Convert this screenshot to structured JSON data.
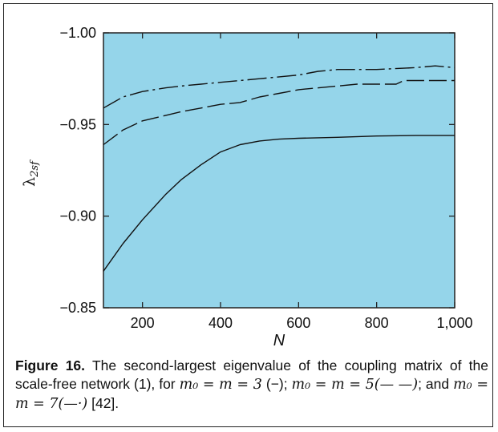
{
  "chart_data": {
    "type": "line",
    "xlabel": "N",
    "ylabel": "λ2sf",
    "xlim": [
      100,
      1000
    ],
    "ylim": [
      -0.85,
      -1.0
    ],
    "y_reversed": true,
    "background": "#95d5ea",
    "xticks": [
      200,
      400,
      600,
      800,
      1000
    ],
    "xtick_labels": [
      "200",
      "400",
      "600",
      "800",
      "1,000"
    ],
    "yticks": [
      -1.0,
      -0.95,
      -0.9,
      -0.85
    ],
    "ytick_labels": [
      "−1.00",
      "−0.95",
      "−0.90",
      "−0.85"
    ],
    "series": [
      {
        "style": "solid",
        "x": [
          100,
          150,
          200,
          260,
          300,
          350,
          400,
          450,
          500,
          550,
          600,
          700,
          800,
          900,
          1000
        ],
        "y": [
          -0.87,
          -0.885,
          -0.898,
          -0.912,
          -0.92,
          -0.928,
          -0.935,
          -0.939,
          -0.941,
          -0.942,
          -0.9425,
          -0.943,
          -0.9437,
          -0.944,
          -0.944
        ]
      },
      {
        "style": "dashed",
        "x": [
          100,
          150,
          200,
          260,
          300,
          350,
          400,
          450,
          500,
          550,
          600,
          700,
          750,
          800,
          850,
          870,
          900,
          1000
        ],
        "y": [
          -0.939,
          -0.947,
          -0.952,
          -0.955,
          -0.957,
          -0.959,
          -0.961,
          -0.962,
          -0.965,
          -0.967,
          -0.969,
          -0.971,
          -0.972,
          -0.972,
          -0.972,
          -0.974,
          -0.974,
          -0.974
        ]
      },
      {
        "style": "dashdot",
        "x": [
          100,
          150,
          200,
          260,
          300,
          350,
          400,
          450,
          500,
          550,
          600,
          650,
          700,
          800,
          900,
          950,
          1000
        ],
        "y": [
          -0.959,
          -0.965,
          -0.968,
          -0.97,
          -0.971,
          -0.972,
          -0.973,
          -0.974,
          -0.975,
          -0.976,
          -0.977,
          -0.979,
          -0.98,
          -0.98,
          -0.981,
          -0.982,
          -0.981
        ]
      }
    ]
  },
  "caption": {
    "label": "Figure 16.",
    "text1": " The second-largest eigenvalue of the coupling matrix of the scale-free network (1), for ",
    "math1": "m₀ = m = 3",
    "sym1": " (−); ",
    "math2": "m₀ = m = 5(— —)",
    "text2": "; and ",
    "math3": "m₀ = m = 7(—·)",
    "text3": " [42]."
  }
}
